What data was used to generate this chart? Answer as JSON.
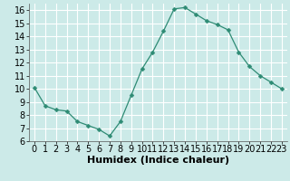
{
  "x": [
    0,
    1,
    2,
    3,
    4,
    5,
    6,
    7,
    8,
    9,
    10,
    11,
    12,
    13,
    14,
    15,
    16,
    17,
    18,
    19,
    20,
    21,
    22,
    23
  ],
  "y": [
    10.1,
    8.7,
    8.4,
    8.3,
    7.5,
    7.2,
    6.9,
    6.4,
    7.5,
    9.5,
    11.5,
    12.8,
    14.4,
    16.1,
    16.2,
    15.7,
    15.2,
    14.9,
    14.5,
    12.8,
    11.7,
    11.0,
    10.5,
    10.0
  ],
  "line_color": "#2e8b74",
  "marker": "D",
  "marker_size": 2.5,
  "bg_color": "#cceae8",
  "grid_color": "#ffffff",
  "xlabel": "Humidex (Indice chaleur)",
  "xlim": [
    -0.5,
    23.5
  ],
  "ylim": [
    6,
    16.5
  ],
  "yticks": [
    6,
    7,
    8,
    9,
    10,
    11,
    12,
    13,
    14,
    15,
    16
  ],
  "xticks": [
    0,
    1,
    2,
    3,
    4,
    5,
    6,
    7,
    8,
    9,
    10,
    11,
    12,
    13,
    14,
    15,
    16,
    17,
    18,
    19,
    20,
    21,
    22,
    23
  ],
  "xlabel_fontsize": 8,
  "tick_fontsize": 7
}
